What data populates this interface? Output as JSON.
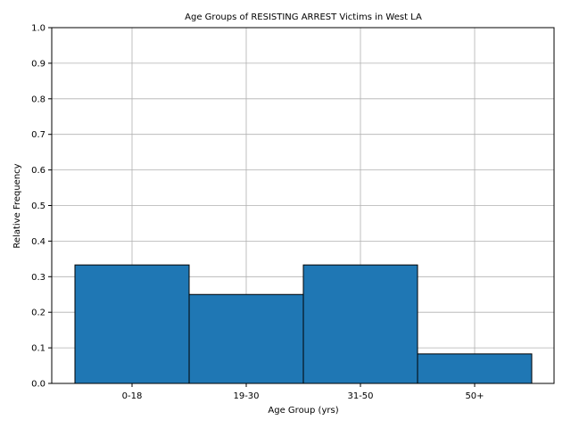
{
  "chart_data": {
    "type": "bar",
    "title": "Age Groups of RESISTING ARREST Victims in West LA",
    "xlabel": "Age Group (yrs)",
    "ylabel": "Relative Frequency",
    "categories": [
      "0-18",
      "19-30",
      "31-50",
      "50+"
    ],
    "values": [
      0.333,
      0.25,
      0.333,
      0.083
    ],
    "ylim": [
      0,
      1.0
    ],
    "yticks": [
      "0.0",
      "0.1",
      "0.2",
      "0.3",
      "0.4",
      "0.5",
      "0.6",
      "0.7",
      "0.8",
      "0.9",
      "1.0"
    ],
    "grid": true,
    "bar_color": "#1f77b4",
    "edge_color": "#000000"
  }
}
